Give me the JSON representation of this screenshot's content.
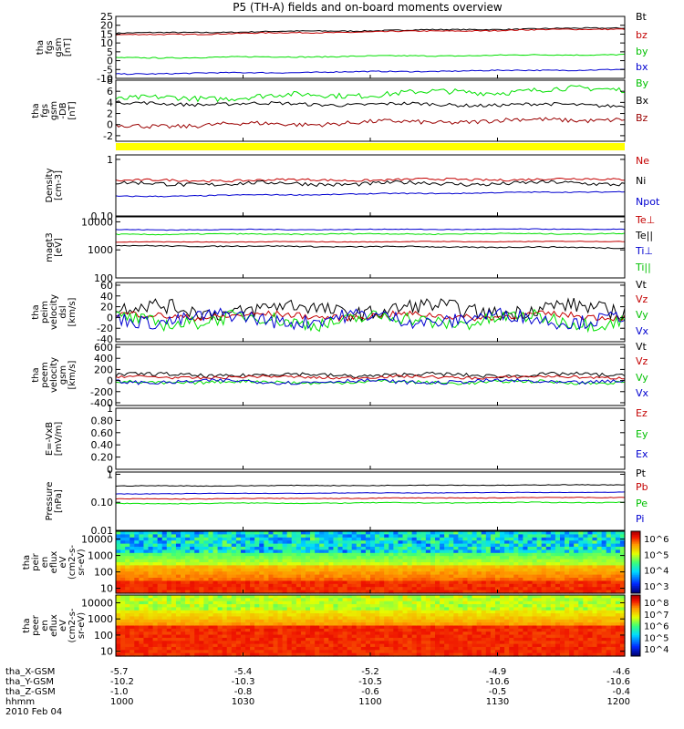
{
  "title": "P5 (TH-A) fields and on-board moments overview",
  "colors": {
    "black": "#000000",
    "red": "#c40000",
    "green": "#00e000",
    "blue": "#0000d0",
    "yellow": "#ffff00",
    "dark_red": "#9a0000"
  },
  "chart_data": [
    {
      "type": "line",
      "panel": "fgs_gsm",
      "ylabel": [
        "tha",
        "fgs",
        "gsm",
        "[nT]"
      ],
      "ylim": [
        -10,
        25
      ],
      "scale": "linear",
      "y_ticks": [
        25,
        20,
        15,
        10,
        5,
        0,
        -5,
        -10
      ],
      "series": [
        {
          "name": "Bt",
          "color": "#000000",
          "start": 15.5,
          "end": 18.5,
          "noise": 0.3
        },
        {
          "name": "bz",
          "color": "#c40000",
          "start": 14.5,
          "end": 18,
          "noise": 0.3
        },
        {
          "name": "by",
          "color": "#00e000",
          "start": 1.5,
          "end": 3.5,
          "noise": 0.3
        },
        {
          "name": "bx",
          "color": "#0000d0",
          "start": -7.5,
          "end": -5,
          "noise": 0.3
        }
      ]
    },
    {
      "type": "line",
      "panel": "fgm_gsm",
      "ylabel": [
        "tha",
        "fgs",
        "gsm",
        "-DB",
        "[nT]"
      ],
      "ylim": [
        -3,
        8
      ],
      "scale": "linear",
      "y_ticks": [
        8,
        6,
        4,
        2,
        0,
        -2
      ],
      "series": [
        {
          "name": "By",
          "color": "#00e000",
          "start": 4.5,
          "end": 6.5,
          "noise": 0.5
        },
        {
          "name": "Bx",
          "color": "#000000",
          "start": 3.8,
          "end": 3.5,
          "noise": 0.3
        },
        {
          "name": "Bz",
          "color": "#9a0000",
          "start": -0.3,
          "end": 1.0,
          "noise": 0.4
        }
      ]
    },
    {
      "type": "line",
      "panel": "density",
      "ylabel": [
        "Density",
        "[cm-3]"
      ],
      "ylim": [
        0.1,
        1.2
      ],
      "scale": "log",
      "y_ticks": [
        1.0,
        0.1
      ],
      "series": [
        {
          "name": "Ne",
          "color": "#c40000",
          "start": 0.42,
          "end": 0.45,
          "noise": 0.02
        },
        {
          "name": "Ni",
          "color": "#000000",
          "start": 0.37,
          "end": 0.38,
          "noise": 0.03
        },
        {
          "name": "Npot",
          "color": "#0000d0",
          "start": 0.22,
          "end": 0.27,
          "noise": 0.005
        }
      ]
    },
    {
      "type": "line",
      "panel": "temperature",
      "ylabel": [
        "magt3",
        "[eV]"
      ],
      "ylim": [
        100,
        15000
      ],
      "scale": "log",
      "y_ticks": [
        10000,
        1000,
        100
      ],
      "series": [
        {
          "name": "Te⊥",
          "color": "#c40000",
          "start": 1900,
          "end": 2000,
          "noise": 50
        },
        {
          "name": "Te||",
          "color": "#000000",
          "start": 1400,
          "end": 1200,
          "noise": 60
        },
        {
          "name": "Ti⊥",
          "color": "#0000d0",
          "start": 5200,
          "end": 5500,
          "noise": 150
        },
        {
          "name": "Ti||",
          "color": "#00e000",
          "start": 3600,
          "end": 3800,
          "noise": 150
        }
      ]
    },
    {
      "type": "line",
      "panel": "velocity_dsl",
      "ylabel": [
        "tha",
        "peim",
        "velocity",
        "dsl",
        "[km/s]"
      ],
      "ylim": [
        -45,
        65
      ],
      "scale": "linear",
      "y_ticks": [
        60,
        40,
        20,
        0,
        -20,
        -40
      ],
      "series": [
        {
          "name": "Vt",
          "color": "#000000",
          "start": 15,
          "end": 15,
          "noise": 14
        },
        {
          "name": "Vz",
          "color": "#c40000",
          "start": 3,
          "end": 3,
          "noise": 6
        },
        {
          "name": "Vy",
          "color": "#00e000",
          "start": -5,
          "end": -5,
          "noise": 13
        },
        {
          "name": "Vx",
          "color": "#0000d0",
          "start": -2,
          "end": -2,
          "noise": 13
        }
      ]
    },
    {
      "type": "line",
      "panel": "velocity_gsm",
      "ylabel": [
        "tha",
        "peem",
        "velocity",
        "gsm",
        "[km/s]"
      ],
      "ylim": [
        -450,
        650
      ],
      "scale": "linear",
      "y_ticks": [
        600,
        400,
        200,
        0,
        -200,
        -400
      ],
      "series": [
        {
          "name": "Vt",
          "color": "#000000",
          "start": 100,
          "end": 100,
          "noise": 35
        },
        {
          "name": "Vz",
          "color": "#c40000",
          "start": 60,
          "end": 60,
          "noise": 25
        },
        {
          "name": "Vy",
          "color": "#00e000",
          "start": -30,
          "end": -30,
          "noise": 30
        },
        {
          "name": "Vx",
          "color": "#0000d0",
          "start": -20,
          "end": -20,
          "noise": 35
        }
      ]
    },
    {
      "type": "line",
      "panel": "efield",
      "ylabel": [
        "E=-VxB",
        "[mV/m]"
      ],
      "ylim": [
        0,
        1.0
      ],
      "scale": "linear",
      "y_ticks": [
        1.0,
        0.8,
        0.6,
        0.4,
        0.2,
        0.0
      ],
      "series": [
        {
          "name": "Ez",
          "color": "#c40000",
          "values": []
        },
        {
          "name": "Ey",
          "color": "#00e000",
          "values": []
        },
        {
          "name": "Ex",
          "color": "#0000d0",
          "values": []
        }
      ]
    },
    {
      "type": "line",
      "panel": "pressure",
      "ylabel": [
        "Pressure",
        "[nPa]"
      ],
      "ylim": [
        0.01,
        1.2
      ],
      "scale": "log",
      "y_ticks": [
        1.0,
        0.1,
        0.01
      ],
      "series": [
        {
          "name": "Pt",
          "color": "#000000",
          "start": 0.38,
          "end": 0.42,
          "noise": 0.01
        },
        {
          "name": "Pb",
          "color": "#c40000",
          "start": 0.13,
          "end": 0.15,
          "noise": 0.004
        },
        {
          "name": "Pe",
          "color": "#00e000",
          "start": 0.09,
          "end": 0.1,
          "noise": 0.003
        },
        {
          "name": "Pi",
          "color": "#0000d0",
          "start": 0.2,
          "end": 0.23,
          "noise": 0.004
        }
      ]
    },
    {
      "type": "heatmap",
      "panel": "ion_spectrogram",
      "ylabel": [
        "tha",
        "peir",
        "en",
        "eflux",
        "eV",
        "(cm2-s-",
        "sr-eV)"
      ],
      "ylim": [
        5,
        30000
      ],
      "scale": "log",
      "y_ticks": [
        10000,
        1000,
        100,
        10
      ],
      "colorbar_ticks": [
        "10^6",
        "10^5",
        "10^4",
        "10^3"
      ]
    },
    {
      "type": "heatmap",
      "panel": "electron_spectrogram",
      "ylabel": [
        "tha",
        "peer",
        "en",
        "eflux",
        "eV",
        "(cm2-s-",
        "sr-eV)"
      ],
      "ylim": [
        5,
        30000
      ],
      "scale": "log",
      "y_ticks": [
        10000,
        1000,
        100,
        10
      ],
      "colorbar_ticks": [
        "10^8",
        "10^7",
        "10^6",
        "10^5",
        "10^4"
      ]
    }
  ],
  "legends": [
    [
      {
        "label": "Bt",
        "color": "#000000"
      },
      {
        "label": "bz",
        "color": "#c40000"
      },
      {
        "label": "by",
        "color": "#00c000"
      },
      {
        "label": "bx",
        "color": "#0000d0"
      }
    ],
    [
      {
        "label": "By",
        "color": "#00c000"
      },
      {
        "label": "Bx",
        "color": "#000000"
      },
      {
        "label": "Bz",
        "color": "#9a0000"
      }
    ],
    [
      {
        "label": "Ne",
        "color": "#c40000"
      },
      {
        "label": "Ni",
        "color": "#000000"
      },
      {
        "label": "Npot",
        "color": "#0000d0"
      }
    ],
    [
      {
        "label": "Te⊥",
        "color": "#c40000"
      },
      {
        "label": "Te||",
        "color": "#000000"
      },
      {
        "label": "Ti⊥",
        "color": "#0000d0"
      },
      {
        "label": "Ti||",
        "color": "#00c000"
      }
    ],
    [
      {
        "label": "Vt",
        "color": "#000000"
      },
      {
        "label": "Vz",
        "color": "#c40000"
      },
      {
        "label": "Vy",
        "color": "#00c000"
      },
      {
        "label": "Vx",
        "color": "#0000d0"
      }
    ],
    [
      {
        "label": "Vt",
        "color": "#000000"
      },
      {
        "label": "Vz",
        "color": "#c40000"
      },
      {
        "label": "Vy",
        "color": "#00c000"
      },
      {
        "label": "Vx",
        "color": "#0000d0"
      }
    ],
    [
      {
        "label": "Ez",
        "color": "#c40000"
      },
      {
        "label": "Ey",
        "color": "#00c000"
      },
      {
        "label": "Ex",
        "color": "#0000d0"
      }
    ],
    [
      {
        "label": "Pt",
        "color": "#000000"
      },
      {
        "label": "Pb",
        "color": "#c40000"
      },
      {
        "label": "Pe",
        "color": "#00c000"
      },
      {
        "label": "Pi",
        "color": "#0000d0"
      }
    ]
  ],
  "time_axis": {
    "rows": [
      {
        "label": "tha_X-GSM",
        "values": [
          "-5.7",
          "-5.4",
          "-5.2",
          "-4.9",
          "-4.6"
        ]
      },
      {
        "label": "tha_Y-GSM",
        "values": [
          "-10.2",
          "-10.3",
          "-10.5",
          "-10.6",
          "-10.6"
        ]
      },
      {
        "label": "tha_Z-GSM",
        "values": [
          "-1.0",
          "-0.8",
          "-0.6",
          "-0.5",
          "-0.4"
        ]
      },
      {
        "label": "hhmm",
        "values": [
          "1000",
          "1030",
          "1100",
          "1130",
          "1200"
        ]
      }
    ],
    "date": "2010 Feb 04"
  }
}
